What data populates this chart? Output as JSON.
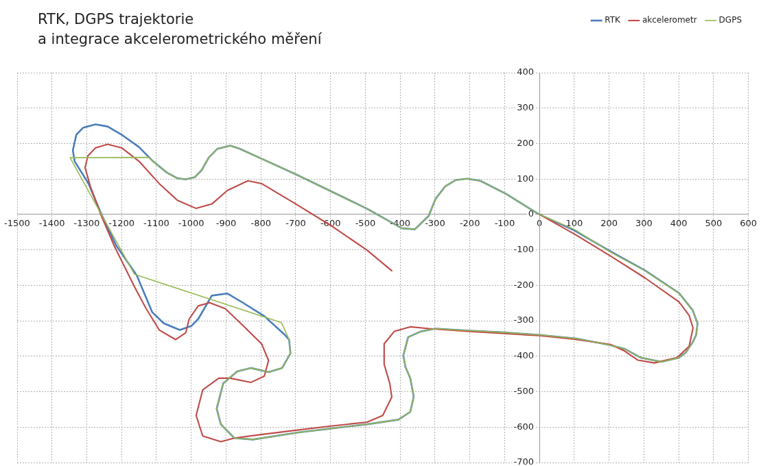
{
  "chart_data": {
    "type": "line",
    "title": "RTK, DGPS trajektorie\na integrace akcelerometrického měření",
    "marker": "none",
    "line_style": "solid",
    "grid": true,
    "legend": "top right",
    "xlim": [
      -1500,
      600
    ],
    "xticks": [
      -1500,
      -1400,
      -1300,
      -1200,
      -1100,
      -1000,
      -900,
      -800,
      -700,
      -600,
      -500,
      -400,
      -300,
      -200,
      -100,
      0,
      100,
      200,
      300,
      400,
      500,
      600
    ],
    "ylim": [
      -700,
      400
    ],
    "yticks": [
      -700,
      -600,
      -500,
      -400,
      -300,
      -200,
      -100,
      0,
      100,
      200,
      300,
      400
    ],
    "series": [
      {
        "name": "RTK",
        "color": "#4a7ebb",
        "x": [
          0,
          100,
          205,
          303,
          401,
          440,
          454,
          450,
          441,
          420,
          401,
          350,
          291,
          244,
          200,
          106,
          0,
          -100,
          -200,
          -299,
          -340,
          -377,
          -391,
          -385,
          -371,
          -361,
          -371,
          -405,
          -495,
          -600,
          -692,
          -823,
          -876,
          -915,
          -927,
          -908,
          -868,
          -829,
          -778,
          -739,
          -715,
          -719,
          -731,
          -790,
          -850,
          -896,
          -941,
          -980,
          -1000,
          -1033,
          -1079,
          -1112,
          -1157,
          -1216,
          -1260,
          -1295,
          -1335,
          -1340,
          -1330,
          -1310,
          -1275,
          -1240,
          -1200,
          -1150,
          -1110,
          -1070,
          -1040,
          -1016,
          -990,
          -970,
          -950,
          -925,
          -888,
          -860,
          -800,
          -699,
          -600,
          -495,
          -395,
          -358,
          -318,
          -299,
          -270,
          -240,
          -208,
          -170,
          -96,
          -50,
          -4
        ],
        "values": [
          0,
          -45,
          -105,
          -158,
          -222,
          -270,
          -307,
          -340,
          -359,
          -390,
          -404,
          -416,
          -404,
          -379,
          -368,
          -350,
          -340,
          -333,
          -328,
          -322,
          -330,
          -346,
          -398,
          -430,
          -462,
          -514,
          -557,
          -579,
          -592,
          -604,
          -615,
          -635,
          -631,
          -592,
          -548,
          -476,
          -443,
          -433,
          -445,
          -433,
          -392,
          -353,
          -340,
          -287,
          -250,
          -223,
          -229,
          -295,
          -315,
          -326,
          -307,
          -276,
          -171,
          -87,
          5,
          87,
          150,
          181,
          225,
          245,
          254,
          248,
          225,
          190,
          150,
          118,
          102,
          99,
          105,
          125,
          160,
          185,
          194,
          185,
          158,
          113,
          66,
          16,
          -39,
          -42,
          -4,
          43,
          80,
          97,
          101,
          95,
          58,
          30,
          2
        ]
      },
      {
        "name": "akcelerometr",
        "color": "#be4b48",
        "x": [
          0,
          100,
          205,
          303,
          401,
          430,
          441,
          430,
          395,
          330,
          283,
          244,
          205,
          100,
          0,
          -100,
          -200,
          -318,
          -371,
          -417,
          -446,
          -446,
          -430,
          -424,
          -450,
          -495,
          -600,
          -692,
          -800,
          -876,
          -915,
          -967,
          -986,
          -967,
          -921,
          -888,
          -829,
          -790,
          -778,
          -798,
          -850,
          -902,
          -947,
          -980,
          -1006,
          -1016,
          -1045,
          -1092,
          -1130,
          -1163,
          -1222,
          -1260,
          -1290,
          -1305,
          -1297,
          -1275,
          -1240,
          -1200,
          -1150,
          -1092,
          -1040,
          -986,
          -940,
          -896,
          -837,
          -798,
          -699,
          -593,
          -495,
          -424
        ],
        "values": [
          0,
          -55,
          -118,
          -179,
          -247,
          -285,
          -320,
          -372,
          -404,
          -419,
          -411,
          -385,
          -367,
          -352,
          -342,
          -336,
          -330,
          -322,
          -317,
          -330,
          -365,
          -423,
          -476,
          -515,
          -567,
          -586,
          -597,
          -608,
          -621,
          -631,
          -641,
          -625,
          -567,
          -495,
          -462,
          -462,
          -474,
          -456,
          -412,
          -365,
          -315,
          -266,
          -249,
          -258,
          -295,
          -334,
          -353,
          -326,
          -265,
          -204,
          -87,
          0,
          80,
          132,
          165,
          188,
          198,
          188,
          150,
          87,
          40,
          17,
          30,
          68,
          95,
          87,
          29,
          -35,
          -101,
          -159
        ]
      },
      {
        "name": "DGPS",
        "color": "#98b954",
        "x": [
          0,
          100,
          205,
          303,
          401,
          440,
          454,
          450,
          441,
          420,
          401,
          350,
          291,
          244,
          200,
          106,
          0,
          -100,
          -200,
          -299,
          -340,
          -377,
          -391,
          -385,
          -371,
          -361,
          -371,
          -405,
          -495,
          -600,
          -692,
          -823,
          -876,
          -915,
          -927,
          -908,
          -868,
          -829,
          -778,
          -739,
          -715,
          -719,
          -741,
          -1163,
          -1348,
          -1122,
          -1110,
          -1070,
          -1040,
          -1016,
          -990,
          -970,
          -950,
          -925,
          -888,
          -860,
          -800,
          -699,
          -600,
          -495,
          -395,
          -358,
          -318,
          -299,
          -270,
          -240,
          -208,
          -170,
          -96,
          -50,
          -4
        ],
        "values": [
          0,
          -42,
          -107,
          -159,
          -223,
          -270,
          -307,
          -340,
          -359,
          -390,
          -404,
          -416,
          -404,
          -379,
          -368,
          -350,
          -340,
          -333,
          -328,
          -322,
          -330,
          -346,
          -398,
          -430,
          -462,
          -514,
          -557,
          -579,
          -592,
          -604,
          -615,
          -635,
          -631,
          -592,
          -548,
          -476,
          -443,
          -433,
          -445,
          -433,
          -392,
          -353,
          -305,
          -169,
          160,
          161,
          150,
          118,
          102,
          99,
          105,
          125,
          160,
          185,
          194,
          185,
          158,
          113,
          66,
          16,
          -39,
          -42,
          -4,
          43,
          80,
          97,
          101,
          95,
          58,
          30,
          2
        ]
      }
    ]
  }
}
